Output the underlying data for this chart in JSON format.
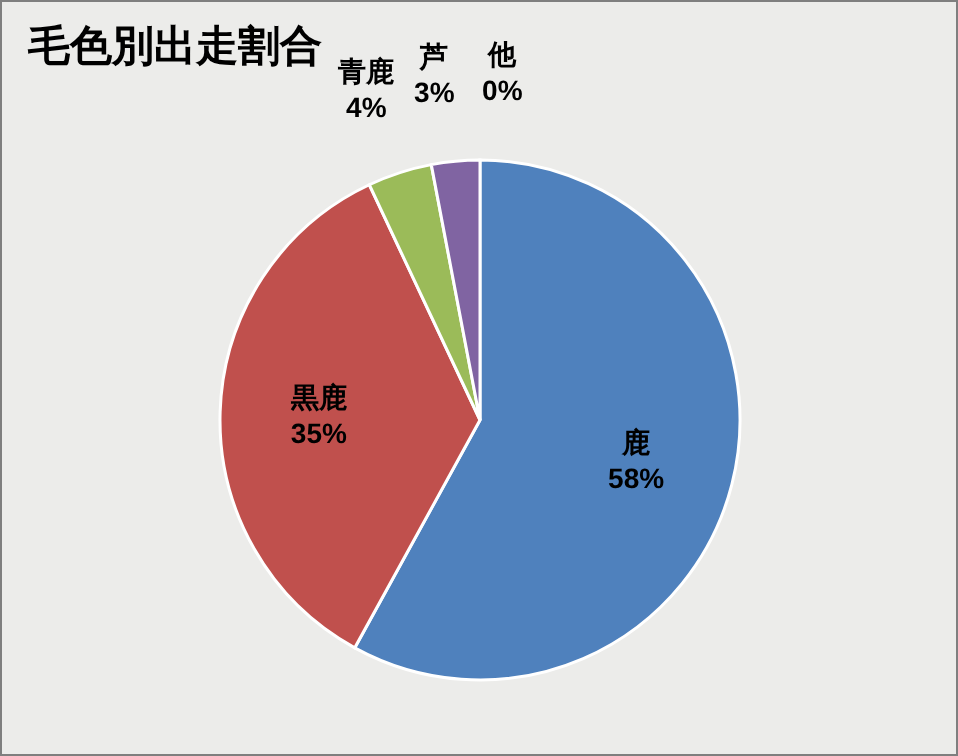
{
  "chart_data": {
    "type": "pie",
    "title": "毛色別出走割合",
    "categories": [
      "鹿",
      "黒鹿",
      "青鹿",
      "芦",
      "他"
    ],
    "values": [
      58,
      35,
      4,
      3,
      0
    ],
    "value_labels": [
      "58%",
      "35%",
      "4%",
      "3%",
      "0%"
    ],
    "colors": [
      "#4f81bd",
      "#c0504d",
      "#9bbb59",
      "#8064a2",
      "#4bacc6"
    ]
  }
}
